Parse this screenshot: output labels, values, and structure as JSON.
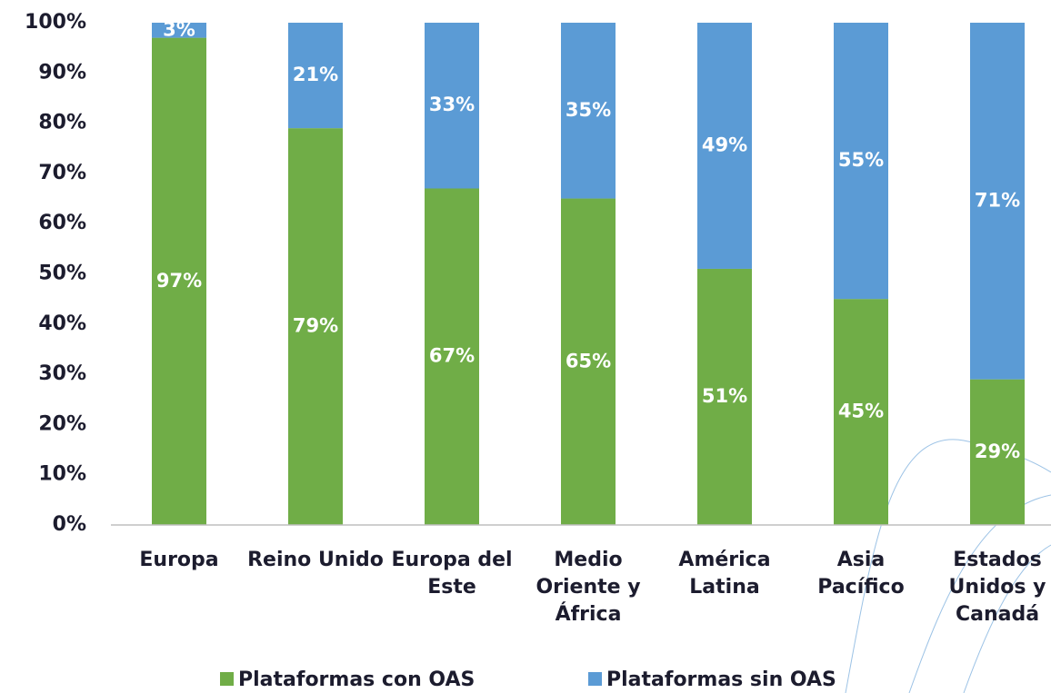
{
  "chart_data": {
    "type": "stacked_bar",
    "categories": [
      "Europa",
      "Reino Unido",
      "Europa del Este",
      "Medio Oriente y África",
      "América Latina",
      "Asia Pacífico",
      "Estados Unidos y Canadá"
    ],
    "series": [
      {
        "name": "Plataformas con OAS",
        "color": "#70ad47",
        "values": [
          97,
          79,
          67,
          65,
          51,
          45,
          29
        ],
        "value_labels": [
          "97%",
          "79%",
          "67%",
          "65%",
          "51%",
          "45%",
          "29%"
        ]
      },
      {
        "name": "Plataformas sin OAS",
        "color": "#5b9bd5",
        "values": [
          3,
          21,
          33,
          35,
          49,
          55,
          71
        ],
        "value_labels": [
          "3%",
          "21%",
          "33%",
          "35%",
          "49%",
          "55%",
          "71%"
        ]
      }
    ],
    "ylim": [
      0,
      100
    ],
    "yticks": [
      {
        "value": 0,
        "label": "0%"
      },
      {
        "value": 10,
        "label": "10%"
      },
      {
        "value": 20,
        "label": "20%"
      },
      {
        "value": 30,
        "label": "30%"
      },
      {
        "value": 40,
        "label": "40%"
      },
      {
        "value": 50,
        "label": "50%"
      },
      {
        "value": 60,
        "label": "60%"
      },
      {
        "value": 70,
        "label": "70%"
      },
      {
        "value": 80,
        "label": "80%"
      },
      {
        "value": 90,
        "label": "90%"
      },
      {
        "value": 100,
        "label": "100%"
      }
    ],
    "legend": "bottom"
  }
}
